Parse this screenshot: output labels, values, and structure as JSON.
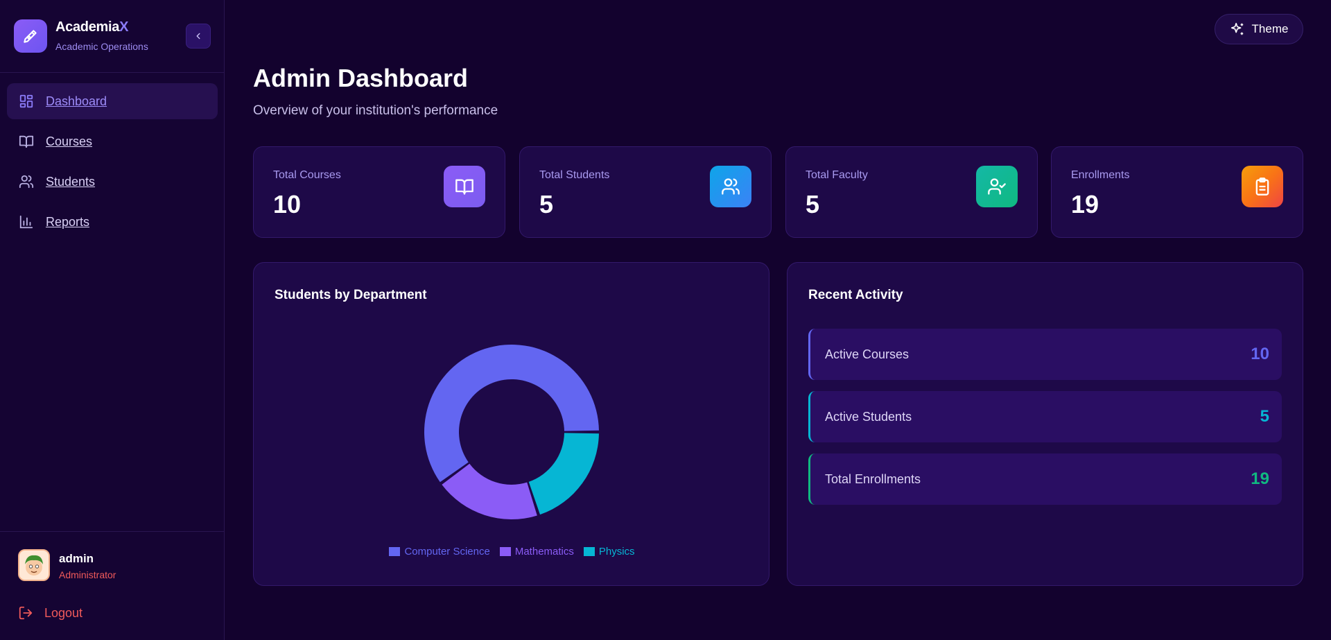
{
  "brand": {
    "name": "Academia",
    "name_accent": "X",
    "subtitle": "Academic Operations"
  },
  "nav": {
    "items": [
      {
        "label": "Dashboard",
        "icon": "dashboard-grid-icon",
        "active": true
      },
      {
        "label": "Courses",
        "icon": "book-icon",
        "active": false
      },
      {
        "label": "Students",
        "icon": "users-icon",
        "active": false
      },
      {
        "label": "Reports",
        "icon": "bar-chart-icon",
        "active": false
      }
    ]
  },
  "user": {
    "name": "admin",
    "role": "Administrator",
    "logout_label": "Logout"
  },
  "header": {
    "theme_label": "Theme"
  },
  "page": {
    "title": "Admin Dashboard",
    "subtitle": "Overview of your institution's performance"
  },
  "stats": [
    {
      "label": "Total Courses",
      "value": "10",
      "icon": "book-open-icon",
      "color": "#8b5cf6"
    },
    {
      "label": "Total Students",
      "value": "5",
      "icon": "users-icon",
      "color": "#0ea5e9"
    },
    {
      "label": "Total Faculty",
      "value": "5",
      "icon": "user-check-icon",
      "color": "#14b8a6"
    },
    {
      "label": "Enrollments",
      "value": "19",
      "icon": "clipboard-icon",
      "color": "#f97316"
    }
  ],
  "department_panel": {
    "title": "Students by Department"
  },
  "chart_data": {
    "type": "pie",
    "donut": true,
    "categories": [
      "Computer Science",
      "Mathematics",
      "Physics"
    ],
    "values": [
      3,
      1,
      1
    ],
    "colors": [
      "#6366f1",
      "#8b5cf6",
      "#06b6d4"
    ],
    "legend_position": "bottom"
  },
  "activity_panel": {
    "title": "Recent Activity",
    "items": [
      {
        "label": "Active Courses",
        "value": "10",
        "color": "#6366f1"
      },
      {
        "label": "Active Students",
        "value": "5",
        "color": "#06b6d4"
      },
      {
        "label": "Total Enrollments",
        "value": "19",
        "color": "#10b981"
      }
    ]
  }
}
